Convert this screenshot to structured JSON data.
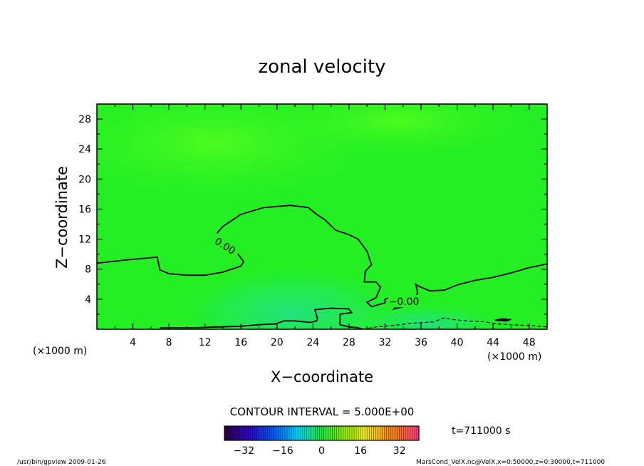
{
  "chart_data": {
    "type": "heatmap",
    "title": "zonal velocity",
    "xlabel": "X−coordinate",
    "ylabel": "Z−coordinate",
    "x_unit_left": "(×1000 m)",
    "x_unit_right": "(×1000 m)",
    "xlim": [
      0,
      50
    ],
    "ylim": [
      0,
      30
    ],
    "x_ticks": [
      4,
      8,
      12,
      16,
      20,
      24,
      28,
      32,
      36,
      40,
      44,
      48
    ],
    "y_ticks": [
      4,
      8,
      12,
      16,
      20,
      24,
      28
    ],
    "contour_interval": "CONTOUR INTERVAL = 5.000E+00",
    "contour_labels": [
      "0.00",
      "−0.00"
    ],
    "zero_contour_main": [
      [
        0,
        8.8
      ],
      [
        3,
        9.2
      ],
      [
        6.7,
        9.6
      ],
      [
        7,
        7.9
      ],
      [
        8,
        7.4
      ],
      [
        10,
        7.2
      ],
      [
        12,
        7.2
      ],
      [
        14,
        7.6
      ],
      [
        16,
        8.4
      ],
      [
        16.3,
        9
      ],
      [
        15.5,
        10.3
      ],
      [
        13.8,
        11.5
      ],
      [
        13,
        12.3
      ],
      [
        14,
        13.7
      ],
      [
        16,
        15.3
      ],
      [
        18.5,
        16.2
      ],
      [
        21.5,
        16.5
      ],
      [
        23.5,
        16.2
      ],
      [
        24.4,
        15.3
      ],
      [
        25.3,
        14.6
      ],
      [
        26.5,
        13.2
      ],
      [
        28,
        12.6
      ],
      [
        29,
        12
      ],
      [
        30,
        10.4
      ],
      [
        30.5,
        8.6
      ],
      [
        29.8,
        7.7
      ],
      [
        29.7,
        6.3
      ],
      [
        31,
        6.3
      ],
      [
        31.5,
        5.6
      ],
      [
        31,
        4.2
      ],
      [
        30,
        3.6
      ],
      [
        30.5,
        3
      ],
      [
        32,
        3.5
      ],
      [
        32,
        4
      ],
      [
        33,
        4.4
      ],
      [
        34,
        4
      ],
      [
        33,
        3.6
      ],
      [
        32.5,
        3.2
      ],
      [
        33.5,
        3.4
      ],
      [
        33,
        2.7
      ],
      [
        34,
        3
      ],
      [
        35,
        3.8
      ],
      [
        35.5,
        4.3
      ],
      [
        35.6,
        5
      ],
      [
        35.4,
        6
      ],
      [
        35.8,
        5.7
      ],
      [
        37,
        5.1
      ],
      [
        38.6,
        5.2
      ],
      [
        40,
        5.9
      ],
      [
        42,
        6.5
      ],
      [
        44,
        6.9
      ],
      [
        46,
        7.5
      ],
      [
        48,
        8.2
      ],
      [
        50,
        8.7
      ]
    ],
    "zero_contour_bottom": [
      [
        7,
        0
      ],
      [
        7.1,
        0.2
      ],
      [
        8.5,
        0.2
      ],
      [
        11,
        0.2
      ],
      [
        13.5,
        0.3
      ],
      [
        16,
        0.4
      ],
      [
        18,
        0.6
      ],
      [
        19.8,
        0.7
      ],
      [
        20.8,
        1.1
      ],
      [
        22,
        1.1
      ],
      [
        23.7,
        0.9
      ],
      [
        24.4,
        1.1
      ],
      [
        24.5,
        1.4
      ],
      [
        24.2,
        2.6
      ],
      [
        26,
        2.8
      ],
      [
        28,
        2.7
      ],
      [
        28.3,
        2.2
      ],
      [
        27,
        2
      ],
      [
        27,
        0.6
      ],
      [
        28,
        0.3
      ],
      [
        29,
        0.2
      ],
      [
        29.5,
        0
      ]
    ],
    "dashed_contour_bottom": [
      [
        29.5,
        0
      ],
      [
        31,
        0.3
      ],
      [
        33,
        0.5
      ],
      [
        35,
        0.8
      ],
      [
        36.5,
        0.9
      ],
      [
        37.5,
        1
      ],
      [
        38.5,
        1.5
      ],
      [
        39.5,
        1.3
      ],
      [
        41,
        1.1
      ],
      [
        43,
        1
      ],
      [
        44.5,
        0.7
      ],
      [
        46,
        0.6
      ],
      [
        48,
        0.5
      ],
      [
        50,
        0.3
      ]
    ],
    "small_contour_right": [
      [
        44.2,
        1.2
      ],
      [
        45,
        1.4
      ],
      [
        46,
        1.3
      ],
      [
        45.5,
        1.1
      ]
    ],
    "color_scale_ticks": [
      -32,
      -16,
      0,
      16,
      32
    ],
    "color_scale_range": [
      -40,
      40
    ],
    "time_label": "t=711000 s",
    "footer_left": "/usr/bin/gpview   2009-01-26",
    "footer_right": "MarsCond_VelX.nc@VelX,x=0:50000,z=0:30000,t=711000"
  },
  "colors": {
    "field_base": "#22ee22",
    "field_light": "#44ff22",
    "field_cool": "#22e070",
    "contour": "#000000"
  }
}
